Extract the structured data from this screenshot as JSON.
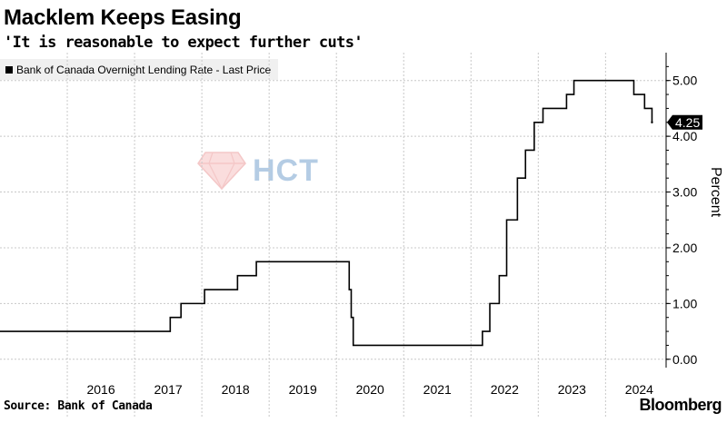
{
  "header": {
    "title": "Macklem Keeps Easing",
    "subtitle": "'It is reasonable to expect further cuts'"
  },
  "legend": {
    "label": "Bank of Canada Overnight Lending Rate - Last Price"
  },
  "footer": {
    "source": "Source: Bank of Canada",
    "brand": "Bloomberg"
  },
  "watermark": {
    "text": "HCT"
  },
  "colors": {
    "line": "#000000",
    "grid": "#c8c8c8",
    "legend_bg": "#f0f0f0"
  },
  "chart_data": {
    "type": "line",
    "title": "Macklem Keeps Easing",
    "subtitle": "'It is reasonable to expect further cuts'",
    "xlabel": "",
    "ylabel": "Percent",
    "ylim": [
      -0.15,
      5.5
    ],
    "xlim": [
      2015.0,
      2024.9
    ],
    "yticks": [
      0,
      1,
      2,
      3,
      4,
      5
    ],
    "ytick_labels": [
      "0.00",
      "1.00",
      "2.00",
      "3.00",
      "4.00",
      "5.00"
    ],
    "xticks": [
      2016,
      2017,
      2018,
      2019,
      2020,
      2021,
      2022,
      2023,
      2024
    ],
    "xtick_labels": [
      "2016",
      "2017",
      "2018",
      "2019",
      "2020",
      "2021",
      "2022",
      "2023",
      "2024"
    ],
    "last_value": 4.25,
    "last_value_label": "4.25",
    "grid": true,
    "series": [
      {
        "name": "Bank of Canada Overnight Lending Rate - Last Price",
        "x": [
          2015.0,
          2017.53,
          2017.69,
          2018.04,
          2018.53,
          2018.81,
          2020.19,
          2020.22,
          2020.25,
          2022.17,
          2022.28,
          2022.42,
          2022.53,
          2022.69,
          2022.81,
          2022.94,
          2023.07,
          2023.42,
          2023.53,
          2024.42,
          2024.58,
          2024.69
        ],
        "values": [
          0.5,
          0.75,
          1.0,
          1.25,
          1.5,
          1.75,
          1.25,
          0.75,
          0.25,
          0.5,
          1.0,
          1.5,
          2.5,
          3.25,
          3.75,
          4.25,
          4.5,
          4.75,
          5.0,
          4.75,
          4.5,
          4.25
        ]
      }
    ]
  }
}
